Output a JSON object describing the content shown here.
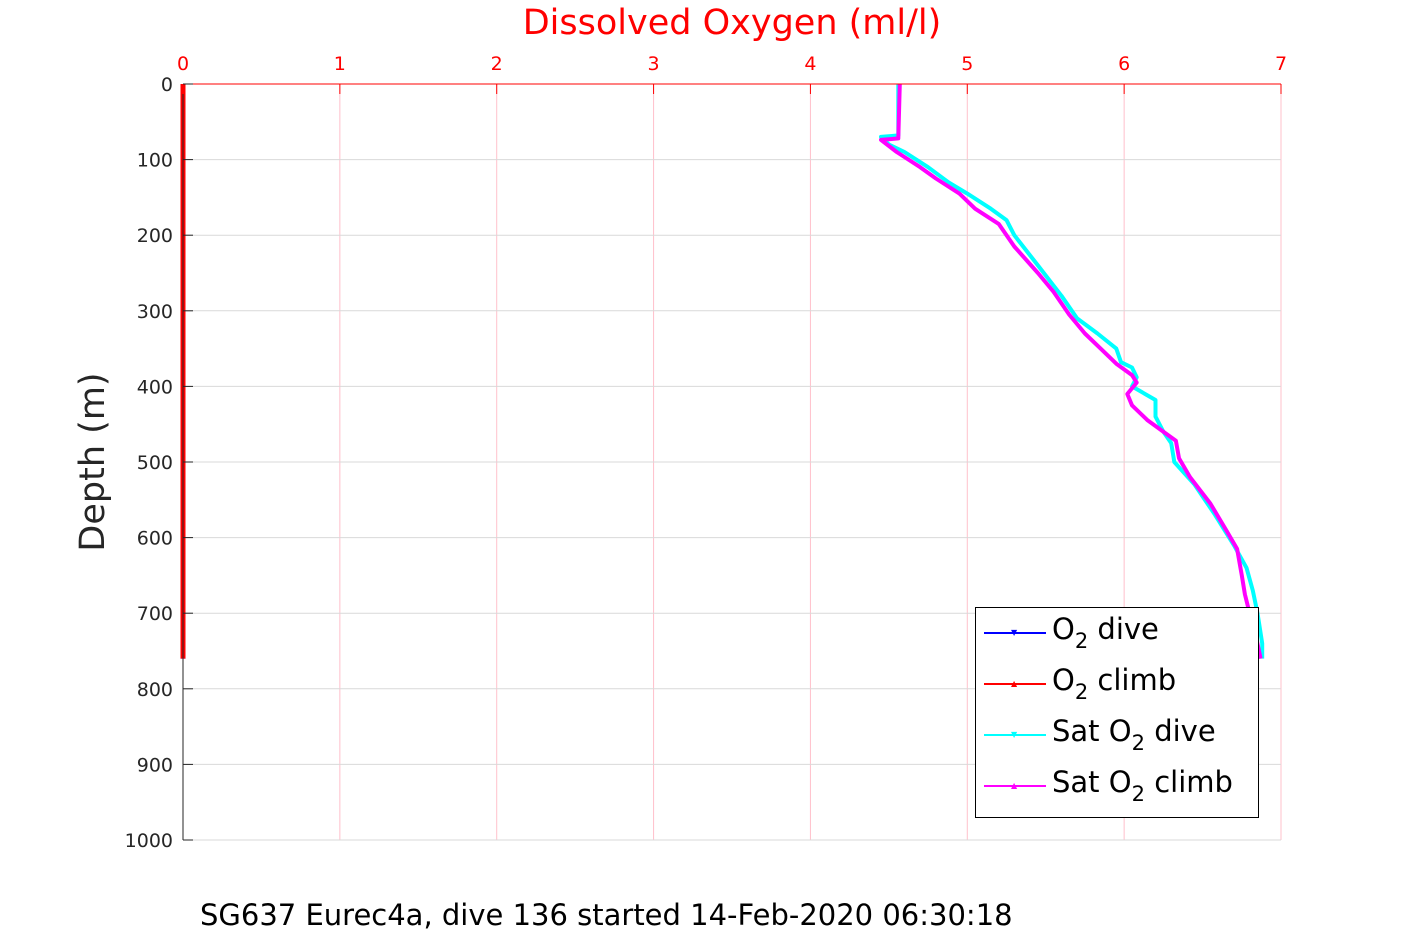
{
  "footer": "SG637 Eurec4a, dive 136 started 14-Feb-2020 06:30:18",
  "chart_data": {
    "type": "line",
    "title": "Dissolved Oxygen (ml/l)",
    "title_color": "#ff0000",
    "ylabel": "Depth (m)",
    "xlim": [
      0,
      7
    ],
    "ylim": [
      0,
      1000
    ],
    "y_reversed": true,
    "x_axis_position": "top",
    "x_ticks": [
      0,
      1,
      2,
      3,
      4,
      5,
      6,
      7
    ],
    "x_tick_labels": [
      "0",
      "1",
      "2",
      "3",
      "4",
      "5",
      "6",
      "7"
    ],
    "y_ticks": [
      0,
      100,
      200,
      300,
      400,
      500,
      600,
      700,
      800,
      900,
      1000
    ],
    "y_tick_labels": [
      "0",
      "100",
      "200",
      "300",
      "400",
      "500",
      "600",
      "700",
      "800",
      "900",
      "1000"
    ],
    "x_grid_color": "#ffc0cb",
    "y_grid_color": "#d9d9d9",
    "legend_position": "bottom-right",
    "series": [
      {
        "name": "O2 dive",
        "color": "#0000ff",
        "marker": "▼",
        "points": [
          [
            0,
            0
          ],
          [
            0,
            760
          ]
        ]
      },
      {
        "name": "O2 climb",
        "color": "#ff0000",
        "marker": "▲",
        "points": [
          [
            0,
            0
          ],
          [
            0,
            760
          ]
        ]
      },
      {
        "name": "Sat O2 dive",
        "color": "#00ffff",
        "marker": "▼",
        "points": [
          [
            4.56,
            0
          ],
          [
            4.56,
            68
          ],
          [
            4.45,
            70
          ],
          [
            4.5,
            80
          ],
          [
            4.6,
            90
          ],
          [
            4.75,
            110
          ],
          [
            4.88,
            130
          ],
          [
            5.0,
            145
          ],
          [
            5.15,
            165
          ],
          [
            5.25,
            180
          ],
          [
            5.3,
            200
          ],
          [
            5.45,
            240
          ],
          [
            5.6,
            280
          ],
          [
            5.7,
            310
          ],
          [
            5.83,
            330
          ],
          [
            5.95,
            350
          ],
          [
            5.98,
            368
          ],
          [
            6.05,
            375
          ],
          [
            6.08,
            388
          ],
          [
            6.05,
            400
          ],
          [
            6.2,
            418
          ],
          [
            6.2,
            440
          ],
          [
            6.25,
            460
          ],
          [
            6.3,
            475
          ],
          [
            6.32,
            500
          ],
          [
            6.45,
            530
          ],
          [
            6.58,
            570
          ],
          [
            6.7,
            610
          ],
          [
            6.78,
            640
          ],
          [
            6.82,
            670
          ],
          [
            6.85,
            700
          ],
          [
            6.88,
            740
          ],
          [
            6.88,
            760
          ]
        ]
      },
      {
        "name": "Sat O2 climb",
        "color": "#ff00ff",
        "marker": "▲",
        "points": [
          [
            4.57,
            0
          ],
          [
            4.56,
            72
          ],
          [
            4.45,
            74
          ],
          [
            4.55,
            90
          ],
          [
            4.7,
            110
          ],
          [
            4.8,
            125
          ],
          [
            4.95,
            145
          ],
          [
            5.05,
            165
          ],
          [
            5.2,
            185
          ],
          [
            5.3,
            215
          ],
          [
            5.45,
            250
          ],
          [
            5.55,
            275
          ],
          [
            5.65,
            305
          ],
          [
            5.75,
            330
          ],
          [
            5.85,
            350
          ],
          [
            5.95,
            370
          ],
          [
            6.05,
            385
          ],
          [
            6.08,
            395
          ],
          [
            6.02,
            410
          ],
          [
            6.05,
            425
          ],
          [
            6.15,
            445
          ],
          [
            6.25,
            460
          ],
          [
            6.33,
            472
          ],
          [
            6.35,
            495
          ],
          [
            6.42,
            520
          ],
          [
            6.55,
            555
          ],
          [
            6.65,
            590
          ],
          [
            6.72,
            615
          ],
          [
            6.75,
            650
          ],
          [
            6.77,
            675
          ],
          [
            6.8,
            700
          ],
          [
            6.84,
            730
          ],
          [
            6.87,
            760
          ]
        ]
      }
    ]
  },
  "legend": {
    "items": [
      {
        "pre": "O",
        "sub": "2",
        "post": " dive",
        "color": "#0000ff",
        "marker": "▼"
      },
      {
        "pre": "O",
        "sub": "2",
        "post": " climb",
        "color": "#ff0000",
        "marker": "▲"
      },
      {
        "pre": "Sat O",
        "sub": "2",
        "post": " dive",
        "color": "#00ffff",
        "marker": "▼"
      },
      {
        "pre": "Sat O",
        "sub": "2",
        "post": " climb",
        "color": "#ff00ff",
        "marker": "▲"
      }
    ]
  }
}
